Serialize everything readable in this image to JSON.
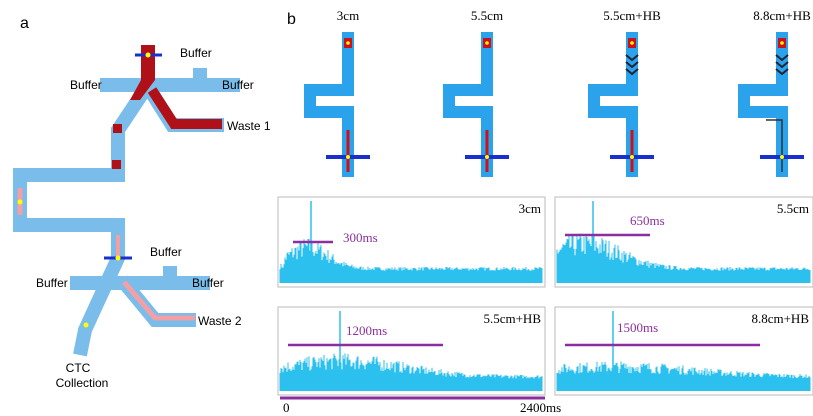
{
  "panel_a": {
    "label": "a",
    "top_junction": {
      "buffer_top": "Buffer",
      "buffer_left": "Buffer",
      "buffer_right": "Buffer",
      "waste": "Waste 1"
    },
    "bottom_junction": {
      "buffer_top": "Buffer",
      "buffer_left": "Buffer",
      "buffer_right": "Buffer",
      "waste": "Waste 2"
    },
    "outlet": [
      "CTC",
      "Collection"
    ]
  },
  "panel_b": {
    "label": "b",
    "devices": [
      "3cm",
      "5.5cm",
      "5.5cm+HB",
      "8.8cm+HB"
    ],
    "traces": [
      {
        "label": "3cm",
        "duration": "300ms"
      },
      {
        "label": "5.5cm",
        "duration": "650ms"
      },
      {
        "label": "5.5cm+HB",
        "duration": "1200ms"
      },
      {
        "label": "8.8cm+HB",
        "duration": "1500ms"
      }
    ],
    "axis": {
      "start": "0",
      "end": "2400ms"
    }
  }
}
